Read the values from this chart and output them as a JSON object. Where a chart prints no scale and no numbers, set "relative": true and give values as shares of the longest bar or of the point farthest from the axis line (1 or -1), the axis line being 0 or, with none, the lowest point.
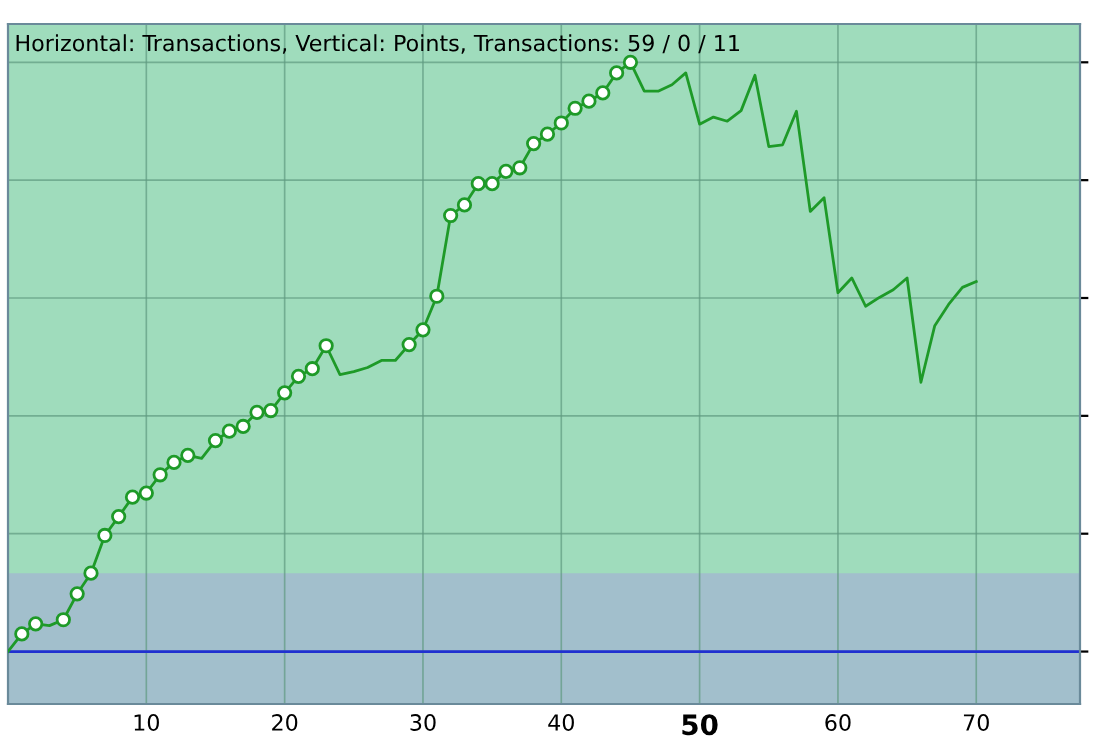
{
  "chart_data": {
    "type": "line",
    "title": "Horizontal: Transactions, Vertical: Points, Transactions: 59 / 0 / 11",
    "relative": true,
    "x": [
      0,
      1,
      2,
      3,
      4,
      5,
      6,
      7,
      8,
      9,
      10,
      11,
      12,
      13,
      14,
      15,
      16,
      17,
      18,
      19,
      20,
      21,
      22,
      23,
      24,
      25,
      26,
      27,
      28,
      29,
      30,
      31,
      32,
      33,
      34,
      35,
      36,
      37,
      38,
      39,
      40,
      41,
      42,
      43,
      44,
      45,
      46,
      47,
      48,
      49,
      50,
      51,
      52,
      53,
      54,
      55,
      56,
      57,
      58,
      59,
      60,
      61,
      62,
      63,
      64,
      65,
      66,
      67,
      68,
      69,
      70
    ],
    "series": [
      {
        "color": "#1e9a28",
        "marker": "none",
        "values": [
          0,
          0.03,
          0.047,
          0.044,
          0.054,
          0.098,
          0.133,
          0.197,
          0.229,
          0.262,
          0.269,
          0.3,
          0.321,
          0.333,
          0.328,
          0.358,
          0.374,
          0.382,
          0.406,
          0.409,
          0.439,
          0.467,
          0.48,
          0.519,
          0.47,
          0.475,
          0.482,
          0.494,
          0.494,
          0.521,
          0.546,
          0.603,
          0.74,
          0.758,
          0.794,
          0.794,
          0.815,
          0.821,
          0.862,
          0.878,
          0.897,
          0.922,
          0.934,
          0.948,
          0.982,
          1.0,
          0.951,
          0.951,
          0.962,
          0.982,
          0.895,
          0.907,
          0.9,
          0.918,
          0.978,
          0.857,
          0.86,
          0.917,
          0.747,
          0.77,
          0.609,
          0.634,
          0.586,
          0.601,
          0.614,
          0.634,
          0.457,
          0.553,
          0.589,
          0.618,
          0.628
        ]
      },
      {
        "type": "scatter",
        "color": "#1e9a28",
        "marker": "circle",
        "x": [
          1,
          2,
          4,
          5,
          6,
          7,
          8,
          9,
          10,
          11,
          12,
          13,
          15,
          16,
          17,
          18,
          19,
          20,
          21,
          22,
          23,
          29,
          30,
          31,
          32,
          33,
          34,
          35,
          36,
          37,
          38,
          39,
          40,
          41,
          42,
          43,
          44,
          45
        ],
        "values": [
          0.03,
          0.047,
          0.054,
          0.098,
          0.133,
          0.197,
          0.229,
          0.262,
          0.269,
          0.3,
          0.321,
          0.333,
          0.358,
          0.374,
          0.382,
          0.406,
          0.409,
          0.439,
          0.467,
          0.48,
          0.519,
          0.521,
          0.546,
          0.603,
          0.74,
          0.758,
          0.794,
          0.794,
          0.815,
          0.821,
          0.862,
          0.878,
          0.897,
          0.922,
          0.934,
          0.948,
          0.982,
          1.0
        ]
      }
    ],
    "xlim": [
      0,
      77.5
    ],
    "xticks": [
      10,
      20,
      30,
      40,
      50,
      60,
      70
    ],
    "ref_lines": [
      {
        "axis": "y",
        "value": 0,
        "color": "#2030d0",
        "line_style": "solid"
      }
    ],
    "bands": [
      {
        "axis": "y",
        "from": -0.089,
        "to": 0.133,
        "color": "#a2bfcc"
      }
    ],
    "grid": true,
    "legend": false
  }
}
